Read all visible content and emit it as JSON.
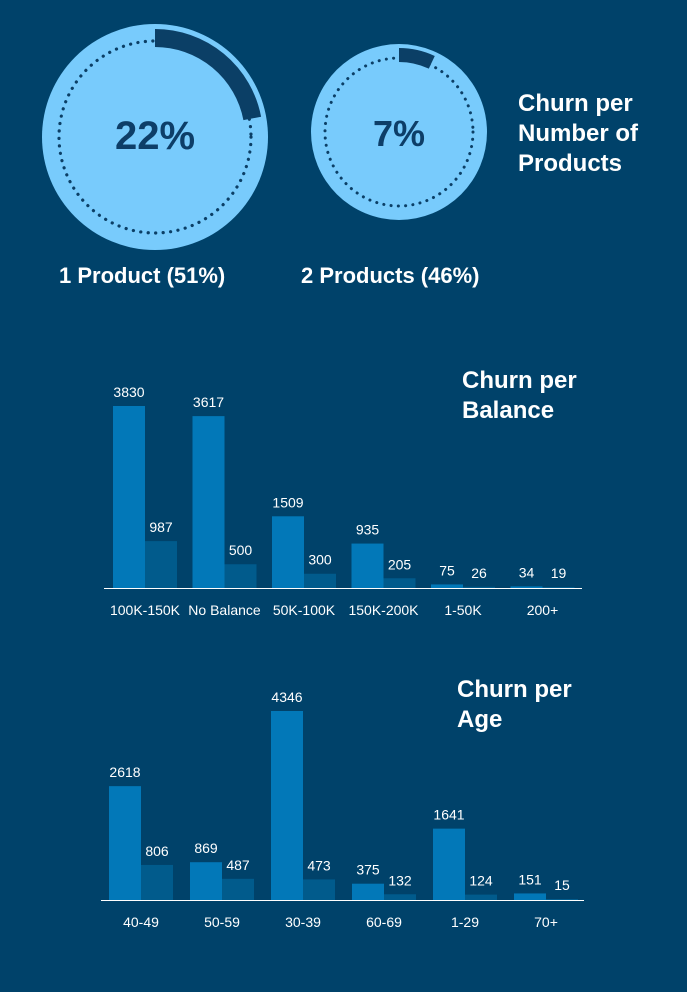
{
  "gauges": [
    {
      "value_text": "22%",
      "fraction": 0.22,
      "label": "1 Product (51%)"
    },
    {
      "value_text": "7%",
      "fraction": 0.07,
      "label": "2 Products (46%)"
    }
  ],
  "products_title": [
    "Churn per",
    "Number of",
    "Products"
  ],
  "colors": {
    "background": "#00426a",
    "gauge_fill": "#78cbfc",
    "gauge_arc": "#0b3f66",
    "bar_primary": "#0278b8",
    "bar_secondary": "#015b8c",
    "text": "#ffffff"
  },
  "chart_data": [
    {
      "type": "bar",
      "title": "Churn per Balance",
      "title_lines": [
        "Churn per",
        "Balance"
      ],
      "categories": [
        "100K-150K",
        "No Balance",
        "50K-100K",
        "150K-200K",
        "1-50K",
        "200+"
      ],
      "series": [
        {
          "values": [
            3830,
            3617,
            1509,
            935,
            75,
            34
          ]
        },
        {
          "values": [
            987,
            500,
            300,
            205,
            26,
            19
          ]
        }
      ],
      "ylim": [
        0,
        4346
      ],
      "grid": false
    },
    {
      "type": "bar",
      "title": "Churn per Age",
      "title_lines": [
        "Churn per",
        "Age"
      ],
      "categories": [
        "40-49",
        "50-59",
        "30-39",
        "60-69",
        "1-29",
        "70+"
      ],
      "series": [
        {
          "values": [
            2618,
            869,
            4346,
            375,
            1641,
            151
          ]
        },
        {
          "values": [
            806,
            487,
            473,
            132,
            124,
            15
          ]
        }
      ],
      "ylim": [
        0,
        4346
      ],
      "grid": false
    }
  ]
}
